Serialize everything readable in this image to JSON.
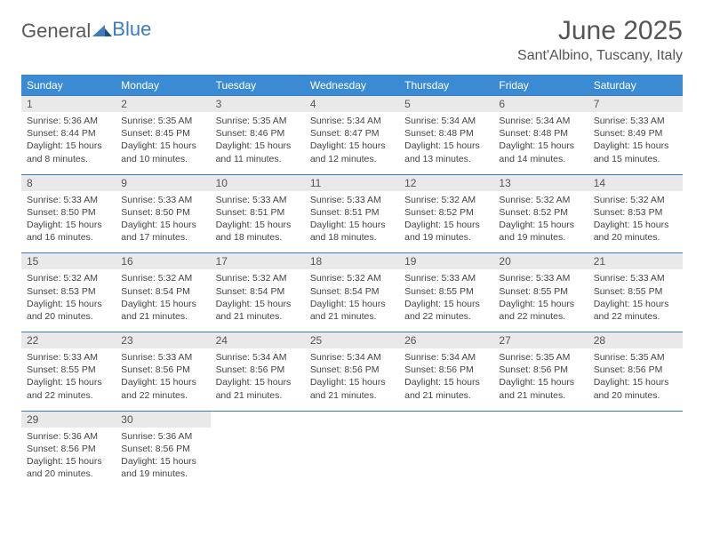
{
  "logo": {
    "text1": "General",
    "text2": "Blue"
  },
  "title": "June 2025",
  "location": "Sant'Albino, Tuscany, Italy",
  "colors": {
    "header_bg": "#3b8bd4",
    "header_text": "#ffffff",
    "daynum_bg": "#e9e9e9",
    "border": "#3b7bbf",
    "text": "#555555",
    "body_text": "#444444"
  },
  "day_names": [
    "Sunday",
    "Monday",
    "Tuesday",
    "Wednesday",
    "Thursday",
    "Friday",
    "Saturday"
  ],
  "weeks": [
    [
      {
        "n": "1",
        "sr": "5:36 AM",
        "ss": "8:44 PM",
        "dl": "15 hours and 8 minutes."
      },
      {
        "n": "2",
        "sr": "5:35 AM",
        "ss": "8:45 PM",
        "dl": "15 hours and 10 minutes."
      },
      {
        "n": "3",
        "sr": "5:35 AM",
        "ss": "8:46 PM",
        "dl": "15 hours and 11 minutes."
      },
      {
        "n": "4",
        "sr": "5:34 AM",
        "ss": "8:47 PM",
        "dl": "15 hours and 12 minutes."
      },
      {
        "n": "5",
        "sr": "5:34 AM",
        "ss": "8:48 PM",
        "dl": "15 hours and 13 minutes."
      },
      {
        "n": "6",
        "sr": "5:34 AM",
        "ss": "8:48 PM",
        "dl": "15 hours and 14 minutes."
      },
      {
        "n": "7",
        "sr": "5:33 AM",
        "ss": "8:49 PM",
        "dl": "15 hours and 15 minutes."
      }
    ],
    [
      {
        "n": "8",
        "sr": "5:33 AM",
        "ss": "8:50 PM",
        "dl": "15 hours and 16 minutes."
      },
      {
        "n": "9",
        "sr": "5:33 AM",
        "ss": "8:50 PM",
        "dl": "15 hours and 17 minutes."
      },
      {
        "n": "10",
        "sr": "5:33 AM",
        "ss": "8:51 PM",
        "dl": "15 hours and 18 minutes."
      },
      {
        "n": "11",
        "sr": "5:33 AM",
        "ss": "8:51 PM",
        "dl": "15 hours and 18 minutes."
      },
      {
        "n": "12",
        "sr": "5:32 AM",
        "ss": "8:52 PM",
        "dl": "15 hours and 19 minutes."
      },
      {
        "n": "13",
        "sr": "5:32 AM",
        "ss": "8:52 PM",
        "dl": "15 hours and 19 minutes."
      },
      {
        "n": "14",
        "sr": "5:32 AM",
        "ss": "8:53 PM",
        "dl": "15 hours and 20 minutes."
      }
    ],
    [
      {
        "n": "15",
        "sr": "5:32 AM",
        "ss": "8:53 PM",
        "dl": "15 hours and 20 minutes."
      },
      {
        "n": "16",
        "sr": "5:32 AM",
        "ss": "8:54 PM",
        "dl": "15 hours and 21 minutes."
      },
      {
        "n": "17",
        "sr": "5:32 AM",
        "ss": "8:54 PM",
        "dl": "15 hours and 21 minutes."
      },
      {
        "n": "18",
        "sr": "5:32 AM",
        "ss": "8:54 PM",
        "dl": "15 hours and 21 minutes."
      },
      {
        "n": "19",
        "sr": "5:33 AM",
        "ss": "8:55 PM",
        "dl": "15 hours and 22 minutes."
      },
      {
        "n": "20",
        "sr": "5:33 AM",
        "ss": "8:55 PM",
        "dl": "15 hours and 22 minutes."
      },
      {
        "n": "21",
        "sr": "5:33 AM",
        "ss": "8:55 PM",
        "dl": "15 hours and 22 minutes."
      }
    ],
    [
      {
        "n": "22",
        "sr": "5:33 AM",
        "ss": "8:55 PM",
        "dl": "15 hours and 22 minutes."
      },
      {
        "n": "23",
        "sr": "5:33 AM",
        "ss": "8:56 PM",
        "dl": "15 hours and 22 minutes."
      },
      {
        "n": "24",
        "sr": "5:34 AM",
        "ss": "8:56 PM",
        "dl": "15 hours and 21 minutes."
      },
      {
        "n": "25",
        "sr": "5:34 AM",
        "ss": "8:56 PM",
        "dl": "15 hours and 21 minutes."
      },
      {
        "n": "26",
        "sr": "5:34 AM",
        "ss": "8:56 PM",
        "dl": "15 hours and 21 minutes."
      },
      {
        "n": "27",
        "sr": "5:35 AM",
        "ss": "8:56 PM",
        "dl": "15 hours and 21 minutes."
      },
      {
        "n": "28",
        "sr": "5:35 AM",
        "ss": "8:56 PM",
        "dl": "15 hours and 20 minutes."
      }
    ],
    [
      {
        "n": "29",
        "sr": "5:36 AM",
        "ss": "8:56 PM",
        "dl": "15 hours and 20 minutes."
      },
      {
        "n": "30",
        "sr": "5:36 AM",
        "ss": "8:56 PM",
        "dl": "15 hours and 19 minutes."
      },
      null,
      null,
      null,
      null,
      null
    ]
  ],
  "labels": {
    "sunrise": "Sunrise: ",
    "sunset": "Sunset: ",
    "daylight": "Daylight: "
  }
}
